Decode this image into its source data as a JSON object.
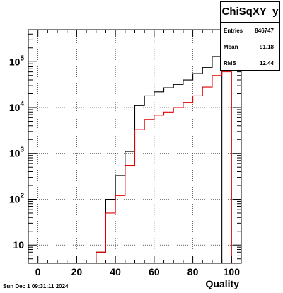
{
  "chart_data": {
    "type": "histogram",
    "title": "",
    "xlabel": "Quality",
    "ylabel": "",
    "y_scale": "log",
    "xlim": [
      -5,
      105
    ],
    "ylim": [
      4,
      500000
    ],
    "grid": true,
    "bin_width": 5,
    "bin_edges": [
      -5,
      0,
      5,
      10,
      15,
      20,
      25,
      30,
      35,
      40,
      45,
      50,
      55,
      60,
      65,
      70,
      75,
      80,
      85,
      90,
      95,
      100,
      105
    ],
    "x_ticks": [
      "0",
      "20",
      "40",
      "60",
      "80",
      "100"
    ],
    "x_tick_values": [
      0,
      20,
      40,
      60,
      80,
      100
    ],
    "y_ticks": [
      {
        "value": 10,
        "base": "10",
        "exp": ""
      },
      {
        "value": 100,
        "base": "10",
        "exp": "2"
      },
      {
        "value": 1000,
        "base": "10",
        "exp": "3"
      },
      {
        "value": 10000,
        "base": "10",
        "exp": "4"
      },
      {
        "value": 100000,
        "base": "10",
        "exp": "5"
      }
    ],
    "series": [
      {
        "color": "#000000",
        "values": [
          0,
          0,
          0,
          0,
          0,
          0,
          0,
          7,
          100,
          330,
          1100,
          11000,
          18000,
          22000,
          27000,
          32000,
          40000,
          55000,
          75000,
          130000,
          0,
          0
        ]
      },
      {
        "color": "#e00000",
        "values": [
          0,
          0,
          0,
          0,
          0,
          0,
          0,
          7,
          50,
          120,
          550,
          3300,
          5500,
          6800,
          8000,
          10000,
          13000,
          18000,
          28000,
          50000,
          60000,
          0
        ]
      }
    ]
  },
  "stats": {
    "title": "ChiSqXY_y",
    "rows": [
      {
        "label": "Entries",
        "value": "846747"
      },
      {
        "label": "Mean",
        "value": "91.18"
      },
      {
        "label": "RMS",
        "value": "12.44"
      }
    ]
  },
  "timestamp": "Sun Dec  1 09:31:11 2024"
}
